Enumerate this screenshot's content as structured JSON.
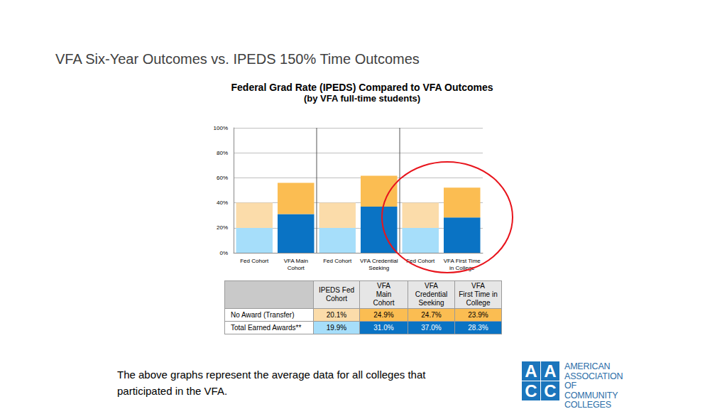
{
  "heading": "VFA Six-Year Outcomes vs. IPEDS 150% Time Outcomes",
  "chart_data": {
    "type": "bar",
    "title": "Federal Grad Rate (IPEDS) Compared to VFA Outcomes",
    "subtitle": "(by VFA full-time students)",
    "categories": [
      "Fed Cohort",
      "VFA Main\nCohort",
      "Fed Cohort",
      "VFA Credential\nSeeking",
      "Fed Cohort",
      "VFA First Time\nin College"
    ],
    "series": [
      {
        "name": "Total Earned Awards**",
        "colors": [
          "#a6defa",
          "#0a73c4",
          "#a6defa",
          "#0a73c4",
          "#a6defa",
          "#0a73c4"
        ],
        "values": [
          19.9,
          31.0,
          19.9,
          37.0,
          19.9,
          28.3
        ]
      },
      {
        "name": "No Award (Transfer)",
        "colors": [
          "#fbdcaa",
          "#fbbd52",
          "#fbdcaa",
          "#fbbd52",
          "#fbdcaa",
          "#fbbd52"
        ],
        "values": [
          20.1,
          24.9,
          20.1,
          24.7,
          20.1,
          23.9
        ]
      }
    ],
    "ylim": [
      0,
      100
    ],
    "yticks": [
      {
        "value": 0,
        "label": "0%"
      },
      {
        "value": 20,
        "label": "20%"
      },
      {
        "value": 40,
        "label": "40%"
      },
      {
        "value": 60,
        "label": "60%"
      },
      {
        "value": 80,
        "label": "80%"
      },
      {
        "value": 100,
        "label": "100%"
      }
    ],
    "stacked": true,
    "grid": true
  },
  "table": {
    "header": [
      "IPEDS Fed\nCohort",
      "VFA\nMain\nCohort",
      "VFA\nCredential\nSeeking",
      "VFA\nFirst Time in\nCollege"
    ],
    "rows": [
      {
        "label": "No Award (Transfer)",
        "cells": [
          "20.1%",
          "24.9%",
          "24.7%",
          "23.9%"
        ]
      },
      {
        "label": "Total Earned Awards**",
        "cells": [
          "19.9%",
          "31.0%",
          "37.0%",
          "28.3%"
        ]
      }
    ]
  },
  "footnote": "The above graphs represent the average data for all colleges that\nparticipated in the VFA.",
  "logo": {
    "mark": "AACC",
    "text": "AMERICAN\nASSOCIATION OF\nCOMMUNITY\nCOLLEGES"
  }
}
